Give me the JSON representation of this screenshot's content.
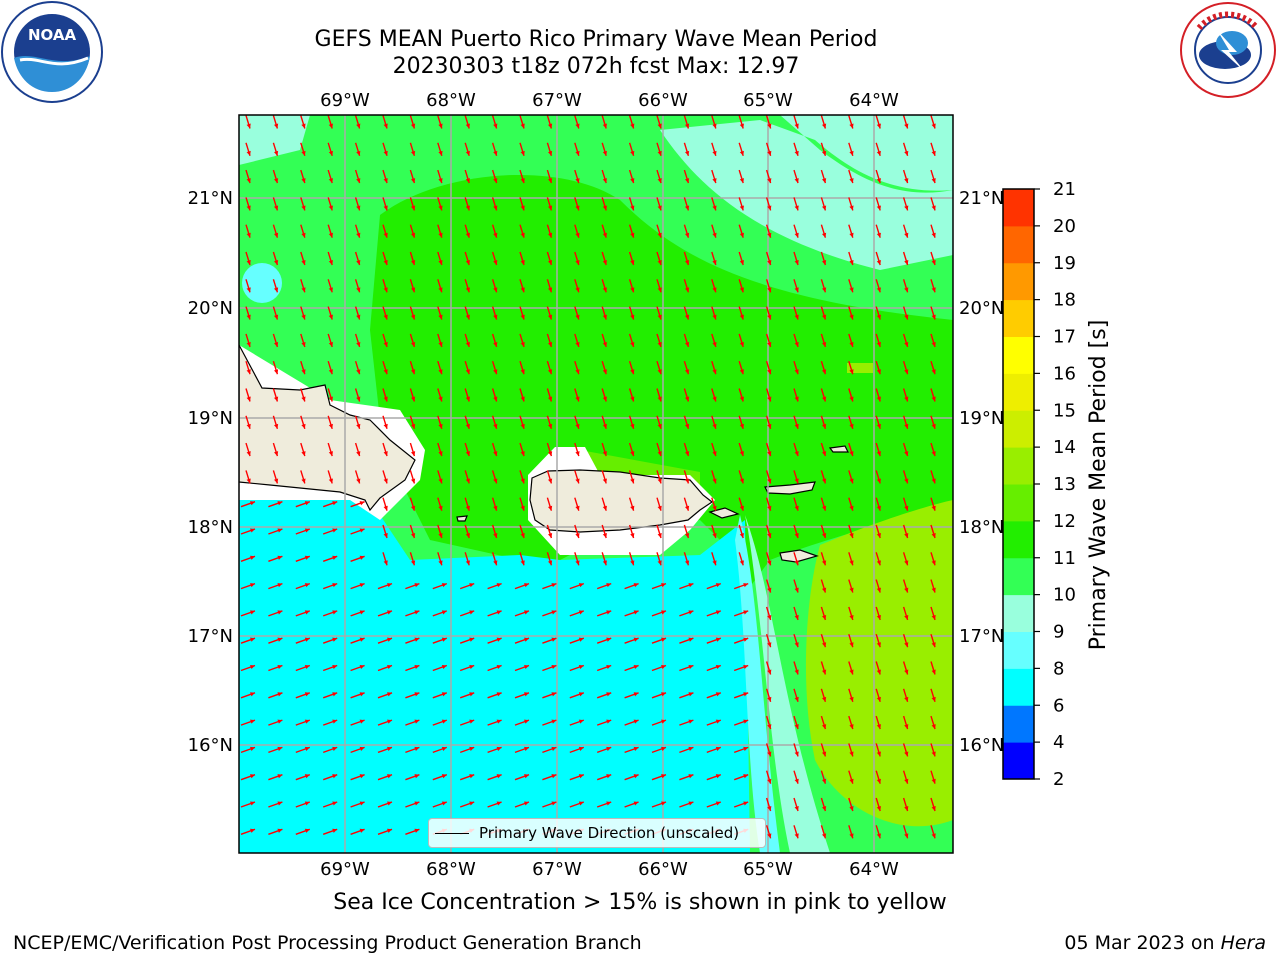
{
  "header": {
    "title_line1": "GEFS MEAN Puerto Rico Primary Wave Mean Period",
    "title_line2": "20230303 t18z 072h fcst   Max: 12.97"
  },
  "logos": {
    "left": "noaa-logo",
    "right": "nws-logo"
  },
  "map": {
    "lon_labels": [
      "69°W",
      "68°W",
      "67°W",
      "66°W",
      "65°W",
      "64°W"
    ],
    "lat_labels": [
      "21°N",
      "20°N",
      "19°N",
      "18°N",
      "17°N",
      "16°N"
    ],
    "extent": {
      "lon_min": -70.0,
      "lon_max": -63.25,
      "lat_min": 15.0,
      "lat_max": 21.75
    },
    "gridlines": true,
    "land_color": "#efecdc",
    "arrow_color": "#ff0000",
    "legend": {
      "label": "Primary Wave Direction (unscaled)",
      "placement": "lower-center"
    }
  },
  "colorbar": {
    "label": "Primary Wave Mean Period [s]",
    "ticks": [
      "2",
      "4",
      "6",
      "8",
      "9",
      "10",
      "11",
      "12",
      "13",
      "14",
      "15",
      "16",
      "17",
      "18",
      "19",
      "20",
      "21"
    ],
    "colors": [
      "#0000ff",
      "#0077ff",
      "#00ffff",
      "#66ffff",
      "#99ffdd",
      "#33ff55",
      "#22ee00",
      "#66ee00",
      "#99ee00",
      "#ccee00",
      "#eeee00",
      "#ffff00",
      "#ffcc00",
      "#ff9900",
      "#ff6600",
      "#ff3300",
      "#ff0000"
    ]
  },
  "caption": "Sea Ice Concentration > 15% is shown in pink to yellow",
  "footer": {
    "left": "NCEP/EMC/Verification Post Processing Product Generation Branch",
    "right_prefix": "05 Mar 2023 on ",
    "right_italic": "Hera"
  }
}
